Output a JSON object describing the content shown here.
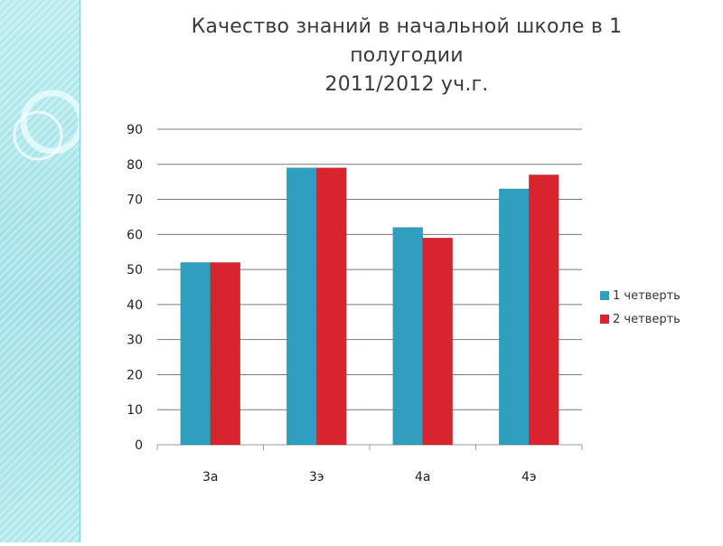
{
  "title": {
    "line1": "Качество знаний в начальной школе в 1",
    "line2": "полугодии",
    "line3": "2011/2012 уч.г."
  },
  "colors": {
    "series1": "#2e9fbf",
    "series2": "#d9232e",
    "gridline": "#7a7a7a",
    "side_band": "#a8e4ea"
  },
  "chart_data": {
    "type": "bar",
    "categories": [
      "3а",
      "3э",
      "4а",
      "4э"
    ],
    "series": [
      {
        "name": "1 четверть",
        "values": [
          52,
          79,
          62,
          73
        ]
      },
      {
        "name": "2 четверть",
        "values": [
          52,
          79,
          59,
          77
        ]
      }
    ],
    "ylim": [
      0,
      90
    ],
    "yticks": [
      0,
      10,
      20,
      30,
      40,
      50,
      60,
      70,
      80,
      90
    ],
    "grid": true,
    "legend": "right",
    "xlabel": "",
    "ylabel": ""
  }
}
